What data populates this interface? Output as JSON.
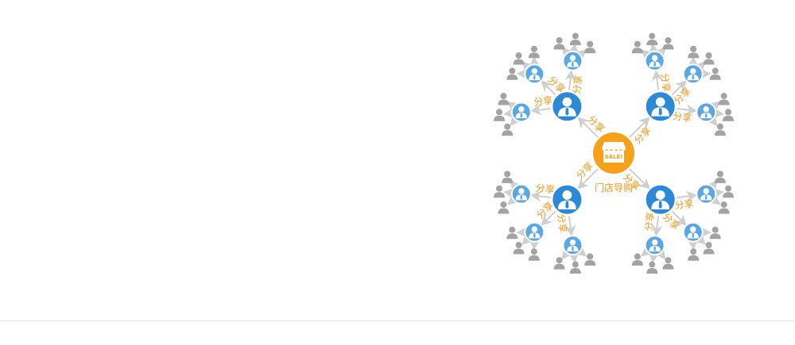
{
  "diagram": {
    "center_label": "门店导购",
    "share_label": "分享",
    "sign_text": "SALE!",
    "colors": {
      "store": "#f7a11a",
      "primary_user": "#2b89d8",
      "secondary_user": "#5aa7e3",
      "leaf_user": "#a3a3a3",
      "arrow": "#cfcfcf",
      "label": "#f09a1a"
    },
    "icons": {
      "center": "store-icon",
      "primary": "user-icon",
      "secondary": "user-icon",
      "leaf": "person-icon"
    },
    "node_counts": {
      "primary": 4,
      "secondary_per_primary": 3,
      "leaf_per_secondary": 3
    }
  }
}
